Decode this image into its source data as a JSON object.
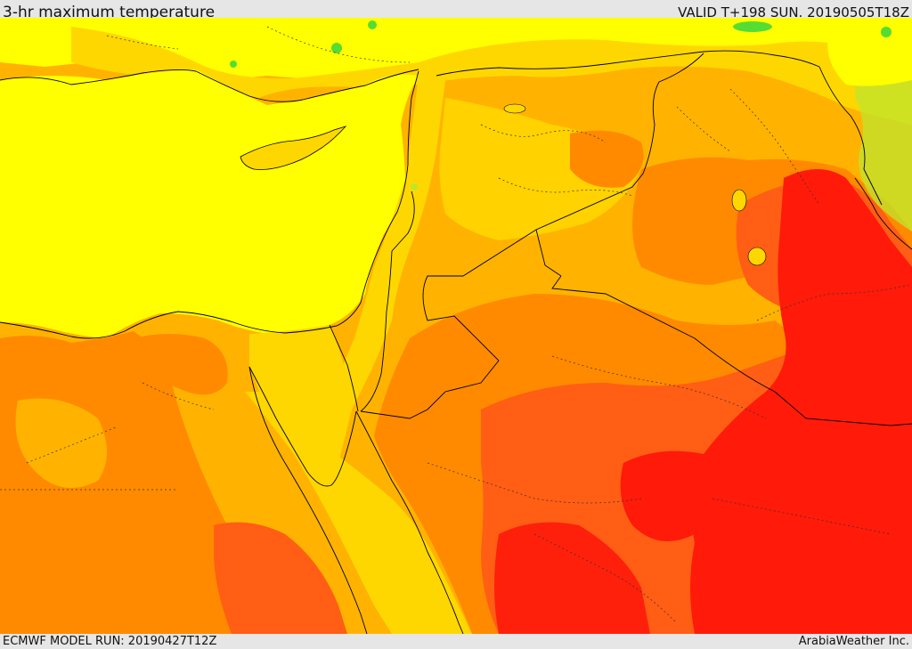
{
  "header": {
    "title": "3-hr maximum temperature",
    "valid": "VALID T+198 SUN. 20190505T18Z"
  },
  "footer": {
    "model_run": "ECMWF MODEL RUN: 20190427T12Z",
    "credit": "ArabiaWeather Inc."
  },
  "map": {
    "field": "3-hr maximum temperature",
    "colors": {
      "green": "#55dd33",
      "yellow_green": "#bfe62d",
      "yellow": "#ffff00",
      "gold": "#ffd700",
      "amber": "#ffb300",
      "orange": "#ff8a00",
      "dark_orange": "#ff5e14",
      "red": "#ff1a0a",
      "border": "#000000"
    }
  }
}
